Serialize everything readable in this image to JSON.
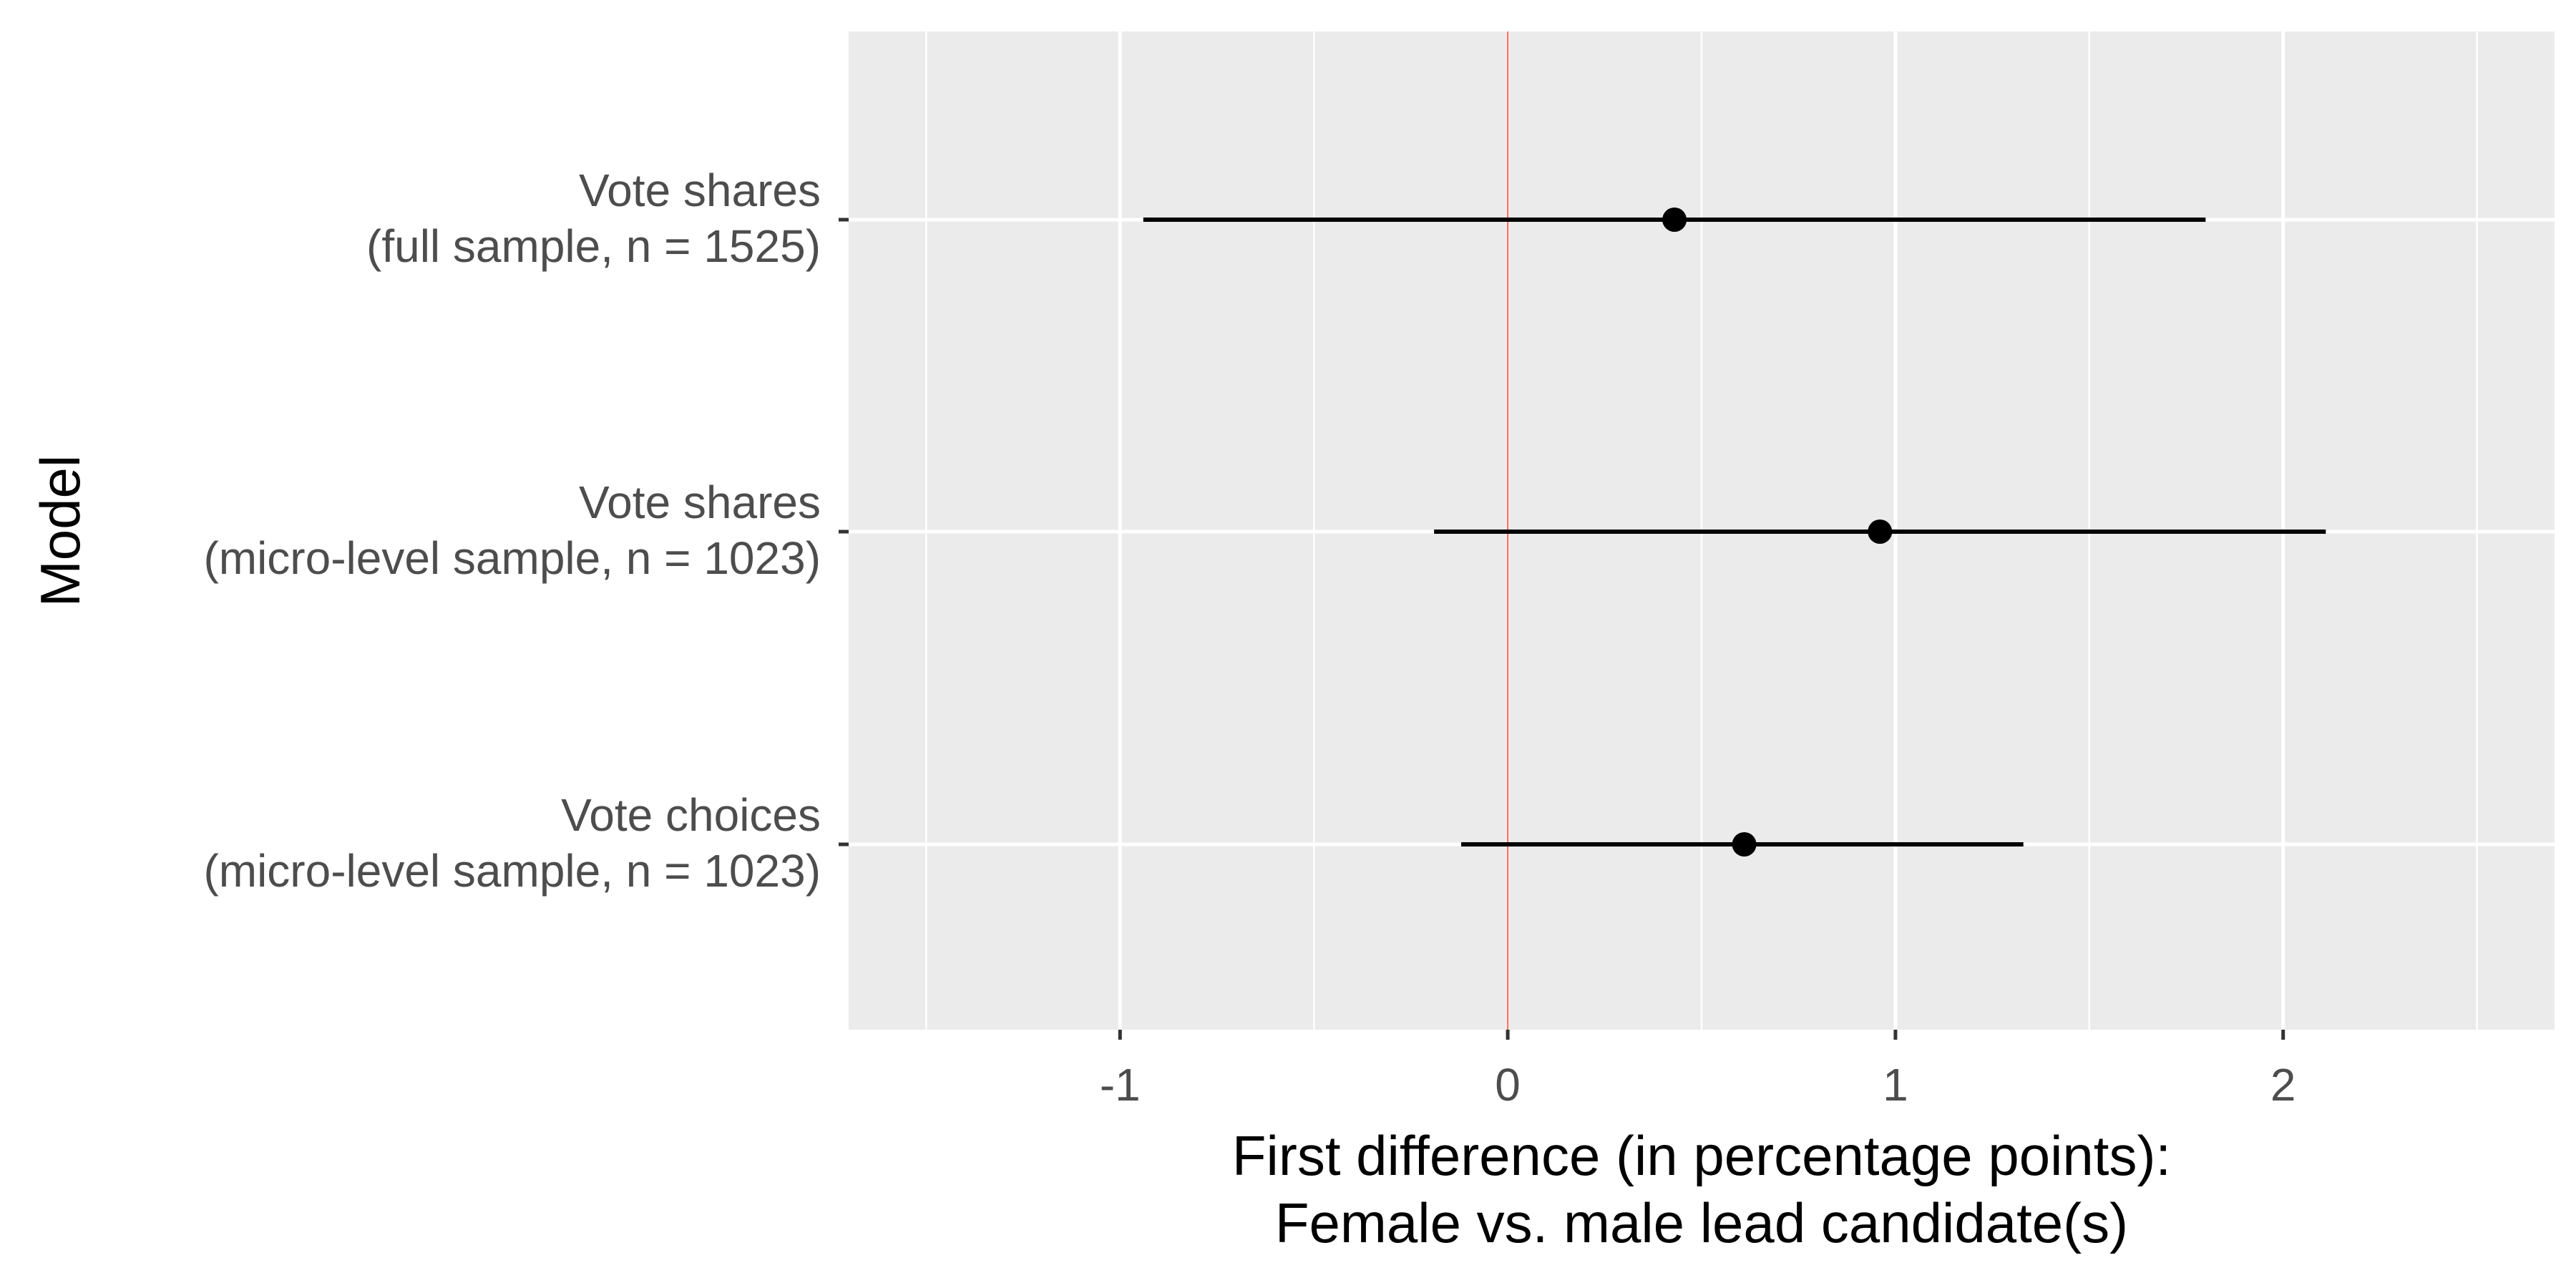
{
  "chart_data": {
    "type": "scatter",
    "subtype": "coefficient-plot",
    "title": "",
    "xlabel_lines": [
      "First difference (in percentage points):",
      "Female vs. male lead candidate(s)"
    ],
    "ylabel": "Model",
    "xlim": [
      -1.7,
      2.7
    ],
    "x_ticks": [
      -1,
      0,
      1,
      2
    ],
    "x_tick_labels": [
      "-1",
      "0",
      "1",
      "2"
    ],
    "x_minor_gridlines": [
      -1.5,
      -0.5,
      0.5,
      1.5,
      2.5
    ],
    "reference_line": {
      "x": 0,
      "color": "#f8766d"
    },
    "grid": true,
    "panel_background": "#ebebeb",
    "gridline_color": "#ffffff",
    "point_color": "#000000",
    "models": [
      {
        "label_lines": [
          "Vote shares",
          "(full sample, n = 1525)"
        ],
        "estimate": 0.43,
        "ci_low": -0.94,
        "ci_high": 1.8
      },
      {
        "label_lines": [
          "Vote shares",
          "(micro-level sample, n = 1023)"
        ],
        "estimate": 0.96,
        "ci_low": -0.19,
        "ci_high": 2.11
      },
      {
        "label_lines": [
          "Vote choices",
          "(micro-level sample, n = 1023)"
        ],
        "estimate": 0.61,
        "ci_low": -0.12,
        "ci_high": 1.33
      }
    ]
  }
}
